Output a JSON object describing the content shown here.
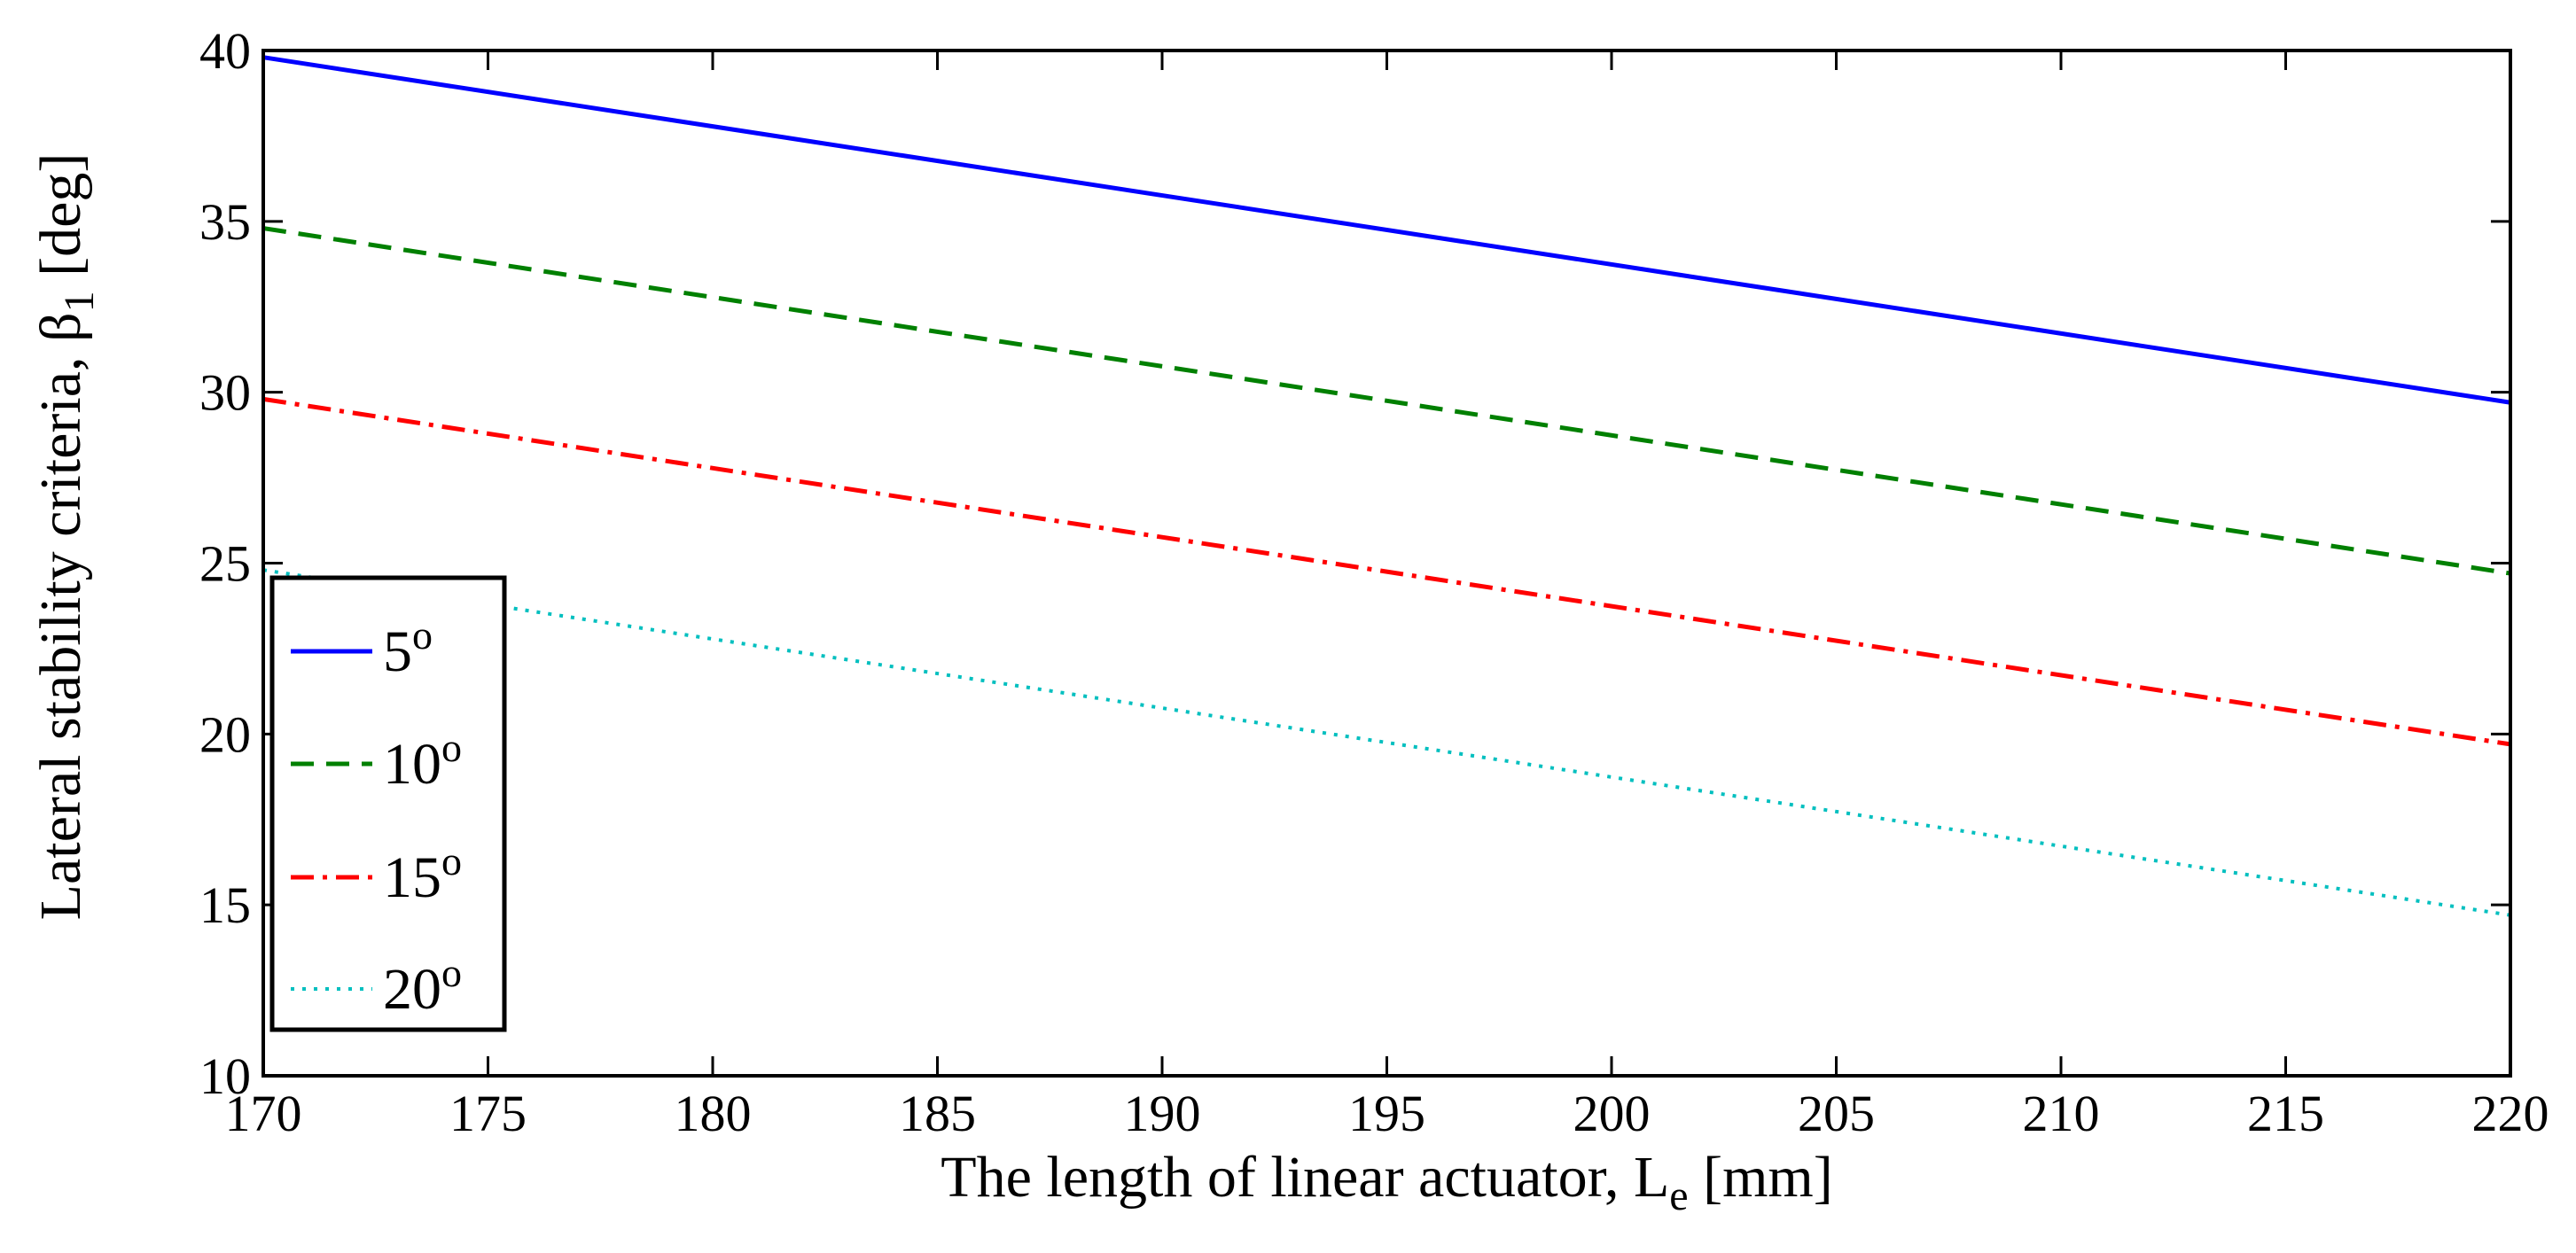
{
  "chart_data": {
    "type": "line",
    "title": "",
    "xlabel": {
      "main": "The length of linear actuator, L",
      "subscript": "e",
      "unit": " [mm]"
    },
    "ylabel": {
      "main": "Lateral stability criteria,  β",
      "subscript": "1",
      "unit": " [deg]"
    },
    "xlim": [
      170,
      220
    ],
    "ylim": [
      10,
      40
    ],
    "xticks": [
      "170",
      "175",
      "180",
      "185",
      "190",
      "195",
      "200",
      "205",
      "210",
      "215",
      "220"
    ],
    "yticks": [
      "10",
      "15",
      "20",
      "25",
      "30",
      "35",
      "40"
    ],
    "legend_position": "lower-left",
    "series": [
      {
        "name": "5",
        "superscript": "o",
        "color": "#0000ff",
        "style": "solid",
        "x": [
          170,
          220
        ],
        "y": [
          39.8,
          29.7
        ]
      },
      {
        "name": "10",
        "superscript": "o",
        "color": "#008000",
        "style": "dashed",
        "x": [
          170,
          220
        ],
        "y": [
          34.8,
          24.7
        ]
      },
      {
        "name": "15",
        "superscript": "o",
        "color": "#ff0000",
        "style": "dashdot",
        "x": [
          170,
          220
        ],
        "y": [
          29.8,
          19.7
        ]
      },
      {
        "name": "20",
        "superscript": "o",
        "color": "#00bfbf",
        "style": "dotted",
        "x": [
          170,
          220
        ],
        "y": [
          24.8,
          14.7
        ]
      }
    ]
  }
}
